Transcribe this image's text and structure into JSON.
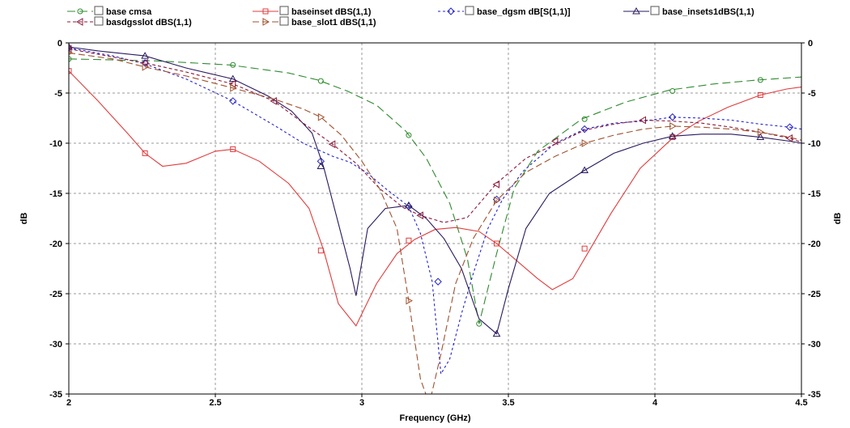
{
  "chart_data": {
    "type": "line",
    "xlabel": "Frequency (GHz)",
    "ylabel_left": "dB",
    "ylabel_right": "dB",
    "xlim": [
      2,
      4.5
    ],
    "ylim": [
      -35,
      0
    ],
    "xticks": [
      2,
      2.5,
      3,
      3.5,
      4,
      4.5
    ],
    "xtick_labels": [
      "2",
      "2.5",
      "3",
      "3.5",
      "4",
      "4.5"
    ],
    "yticks": [
      0,
      -5,
      -10,
      -15,
      -20,
      -25,
      -30,
      -35
    ],
    "ytick_labels": [
      "0",
      "-5",
      "-10",
      "-15",
      "-20",
      "-25",
      "-30",
      "-35"
    ],
    "grid": true,
    "legend_placement": "top",
    "series": [
      {
        "name": "base cmsa",
        "color": "#2e8b2e",
        "dash": "10,5",
        "marker": "circle",
        "points": [
          [
            2,
            -1.6
          ],
          [
            2.3,
            -1.8
          ],
          [
            2.55,
            -2.2
          ],
          [
            2.75,
            -3.0
          ],
          [
            2.85,
            -3.7
          ],
          [
            2.95,
            -4.8
          ],
          [
            3.05,
            -6.2
          ],
          [
            3.15,
            -8.8
          ],
          [
            3.22,
            -11.5
          ],
          [
            3.3,
            -16.0
          ],
          [
            3.36,
            -21.5
          ],
          [
            3.4,
            -28.0
          ],
          [
            3.46,
            -21.0
          ],
          [
            3.52,
            -14.5
          ],
          [
            3.6,
            -10.8
          ],
          [
            3.75,
            -7.6
          ],
          [
            3.9,
            -5.9
          ],
          [
            4.05,
            -4.7
          ],
          [
            4.2,
            -4.1
          ],
          [
            4.35,
            -3.7
          ],
          [
            4.5,
            -3.4
          ]
        ],
        "markers": [
          [
            2,
            -1.6
          ],
          [
            2.56,
            -2.2
          ],
          [
            2.86,
            -3.8
          ],
          [
            3.16,
            -9.2
          ],
          [
            3.4,
            -28.0
          ],
          [
            3.76,
            -7.6
          ],
          [
            4.06,
            -4.8
          ],
          [
            4.36,
            -3.7
          ]
        ]
      },
      {
        "name": "baseinset dBS(1,1)",
        "color": "#e03c3c",
        "dash": "",
        "marker": "square",
        "points": [
          [
            2,
            -2.8
          ],
          [
            2.1,
            -5.8
          ],
          [
            2.2,
            -9.0
          ],
          [
            2.26,
            -11.0
          ],
          [
            2.32,
            -12.3
          ],
          [
            2.4,
            -12.0
          ],
          [
            2.5,
            -10.8
          ],
          [
            2.56,
            -10.6
          ],
          [
            2.65,
            -11.8
          ],
          [
            2.75,
            -14.0
          ],
          [
            2.82,
            -16.5
          ],
          [
            2.87,
            -20.7
          ],
          [
            2.92,
            -26.0
          ],
          [
            2.98,
            -28.2
          ],
          [
            3.05,
            -24.0
          ],
          [
            3.12,
            -21.0
          ],
          [
            3.18,
            -19.6
          ],
          [
            3.25,
            -18.6
          ],
          [
            3.32,
            -18.4
          ],
          [
            3.4,
            -18.8
          ],
          [
            3.46,
            -20.0
          ],
          [
            3.52,
            -21.5
          ],
          [
            3.6,
            -23.5
          ],
          [
            3.65,
            -24.6
          ],
          [
            3.72,
            -23.5
          ],
          [
            3.78,
            -20.5
          ],
          [
            3.85,
            -17.0
          ],
          [
            3.95,
            -12.5
          ],
          [
            4.06,
            -9.5
          ],
          [
            4.15,
            -7.8
          ],
          [
            4.25,
            -6.4
          ],
          [
            4.36,
            -5.2
          ],
          [
            4.45,
            -4.6
          ],
          [
            4.5,
            -4.4
          ]
        ],
        "markers": [
          [
            2,
            -2.8
          ],
          [
            2.26,
            -11.0
          ],
          [
            2.56,
            -10.6
          ],
          [
            2.86,
            -20.7
          ],
          [
            3.16,
            -19.7
          ],
          [
            3.46,
            -20.0
          ],
          [
            3.76,
            -20.5
          ],
          [
            4.06,
            -9.4
          ],
          [
            4.36,
            -5.2
          ]
        ]
      },
      {
        "name": "base_dgsm dB[S(1,1)]",
        "color": "#2222cc",
        "dash": "3,3",
        "marker": "diamond",
        "points": [
          [
            2,
            -0.5
          ],
          [
            2.15,
            -1.3
          ],
          [
            2.26,
            -2.1
          ],
          [
            2.4,
            -3.6
          ],
          [
            2.56,
            -5.8
          ],
          [
            2.7,
            -8.2
          ],
          [
            2.8,
            -10.0
          ],
          [
            2.9,
            -11.3
          ],
          [
            2.96,
            -11.9
          ],
          [
            3.02,
            -13.0
          ],
          [
            3.08,
            -14.5
          ],
          [
            3.16,
            -16.3
          ],
          [
            3.2,
            -19.0
          ],
          [
            3.24,
            -23.8
          ],
          [
            3.27,
            -33.0
          ],
          [
            3.3,
            -31.5
          ],
          [
            3.34,
            -27.0
          ],
          [
            3.38,
            -23.0
          ],
          [
            3.43,
            -18.5
          ],
          [
            3.48,
            -15.6
          ],
          [
            3.55,
            -12.8
          ],
          [
            3.66,
            -10.0
          ],
          [
            3.76,
            -8.6
          ],
          [
            3.86,
            -8.0
          ],
          [
            3.96,
            -7.8
          ],
          [
            4.06,
            -7.4
          ],
          [
            4.16,
            -7.5
          ],
          [
            4.26,
            -7.7
          ],
          [
            4.36,
            -8.1
          ],
          [
            4.46,
            -8.4
          ],
          [
            4.5,
            -8.6
          ]
        ],
        "markers": [
          [
            2,
            -0.5
          ],
          [
            2.26,
            -2.0
          ],
          [
            2.56,
            -5.8
          ],
          [
            2.86,
            -11.8
          ],
          [
            3.16,
            -16.3
          ],
          [
            3.26,
            -23.8
          ],
          [
            3.46,
            -15.6
          ],
          [
            3.76,
            -8.6
          ],
          [
            4.06,
            -7.4
          ],
          [
            4.46,
            -8.4
          ]
        ]
      },
      {
        "name": "base_insets1dBS(1,1)",
        "color": "#2a1a5e",
        "dash": "",
        "marker": "triangle",
        "points": [
          [
            2,
            -0.4
          ],
          [
            2.1,
            -0.8
          ],
          [
            2.26,
            -1.3
          ],
          [
            2.4,
            -2.5
          ],
          [
            2.56,
            -3.6
          ],
          [
            2.68,
            -5.3
          ],
          [
            2.76,
            -6.8
          ],
          [
            2.83,
            -9.0
          ],
          [
            2.87,
            -12.4
          ],
          [
            2.92,
            -18.0
          ],
          [
            2.96,
            -22.5
          ],
          [
            2.98,
            -25.2
          ],
          [
            3.02,
            -18.5
          ],
          [
            3.08,
            -16.5
          ],
          [
            3.16,
            -16.2
          ],
          [
            3.22,
            -17.5
          ],
          [
            3.28,
            -19.5
          ],
          [
            3.34,
            -22.5
          ],
          [
            3.4,
            -27.5
          ],
          [
            3.46,
            -29.0
          ],
          [
            3.5,
            -24.5
          ],
          [
            3.56,
            -18.5
          ],
          [
            3.64,
            -15.0
          ],
          [
            3.76,
            -12.7
          ],
          [
            3.86,
            -11.0
          ],
          [
            3.96,
            -10.0
          ],
          [
            4.06,
            -9.3
          ],
          [
            4.16,
            -9.1
          ],
          [
            4.26,
            -9.1
          ],
          [
            4.36,
            -9.4
          ],
          [
            4.46,
            -9.8
          ],
          [
            4.5,
            -10.0
          ]
        ],
        "markers": [
          [
            2,
            -0.4
          ],
          [
            2.26,
            -1.3
          ],
          [
            2.56,
            -3.6
          ],
          [
            2.86,
            -12.3
          ],
          [
            3.16,
            -16.2
          ],
          [
            3.46,
            -29.0
          ],
          [
            3.76,
            -12.7
          ],
          [
            4.06,
            -9.3
          ],
          [
            4.36,
            -9.4
          ]
        ]
      },
      {
        "name": "basdgsslot dBS(1,1)",
        "color": "#8b1a3a",
        "dash": "4,3",
        "marker": "triangle-left",
        "points": [
          [
            2,
            -0.6
          ],
          [
            2.15,
            -1.4
          ],
          [
            2.26,
            -2.0
          ],
          [
            2.4,
            -2.9
          ],
          [
            2.56,
            -4.1
          ],
          [
            2.7,
            -5.8
          ],
          [
            2.8,
            -8.0
          ],
          [
            2.9,
            -10.1
          ],
          [
            2.98,
            -12.0
          ],
          [
            3.06,
            -14.5
          ],
          [
            3.14,
            -16.4
          ],
          [
            3.2,
            -17.2
          ],
          [
            3.28,
            -17.9
          ],
          [
            3.36,
            -17.4
          ],
          [
            3.46,
            -14.0
          ],
          [
            3.56,
            -11.5
          ],
          [
            3.66,
            -10.1
          ],
          [
            3.76,
            -8.7
          ],
          [
            3.86,
            -8.1
          ],
          [
            3.96,
            -7.7
          ],
          [
            4.06,
            -7.8
          ],
          [
            4.16,
            -8.0
          ],
          [
            4.26,
            -8.4
          ],
          [
            4.36,
            -8.9
          ],
          [
            4.46,
            -9.5
          ],
          [
            4.5,
            -9.9
          ]
        ],
        "markers": [
          [
            2,
            -0.6
          ],
          [
            2.26,
            -2.0
          ],
          [
            2.56,
            -4.1
          ],
          [
            2.7,
            -5.8
          ],
          [
            2.9,
            -10.1
          ],
          [
            3.2,
            -17.2
          ],
          [
            3.46,
            -14.1
          ],
          [
            3.66,
            -9.8
          ],
          [
            3.96,
            -7.7
          ],
          [
            4.46,
            -9.5
          ]
        ]
      },
      {
        "name": "base_slot1 dBS(1,1)",
        "color": "#a0522d",
        "dash": "8,4",
        "marker": "triangle-right",
        "points": [
          [
            2,
            -1.0
          ],
          [
            2.15,
            -1.6
          ],
          [
            2.26,
            -2.4
          ],
          [
            2.4,
            -3.3
          ],
          [
            2.56,
            -4.5
          ],
          [
            2.7,
            -5.6
          ],
          [
            2.8,
            -6.6
          ],
          [
            2.86,
            -7.4
          ],
          [
            2.93,
            -9.2
          ],
          [
            3.0,
            -11.8
          ],
          [
            3.06,
            -14.5
          ],
          [
            3.12,
            -18.5
          ],
          [
            3.16,
            -25.7
          ],
          [
            3.2,
            -33.5
          ],
          [
            3.23,
            -36.0
          ],
          [
            3.27,
            -31.0
          ],
          [
            3.32,
            -24.0
          ],
          [
            3.38,
            -19.5
          ],
          [
            3.46,
            -15.7
          ],
          [
            3.56,
            -12.9
          ],
          [
            3.66,
            -11.3
          ],
          [
            3.76,
            -10.0
          ],
          [
            3.86,
            -9.2
          ],
          [
            3.96,
            -8.6
          ],
          [
            4.06,
            -8.3
          ],
          [
            4.16,
            -8.4
          ],
          [
            4.26,
            -8.6
          ],
          [
            4.36,
            -8.9
          ],
          [
            4.46,
            -9.4
          ],
          [
            4.5,
            -9.7
          ]
        ],
        "markers": [
          [
            2,
            -1.0
          ],
          [
            2.26,
            -2.4
          ],
          [
            2.56,
            -4.5
          ],
          [
            2.86,
            -7.4
          ],
          [
            3.16,
            -25.7
          ],
          [
            3.46,
            -15.7
          ],
          [
            3.76,
            -10.0
          ],
          [
            4.06,
            -8.3
          ],
          [
            4.36,
            -8.9
          ]
        ]
      }
    ]
  }
}
